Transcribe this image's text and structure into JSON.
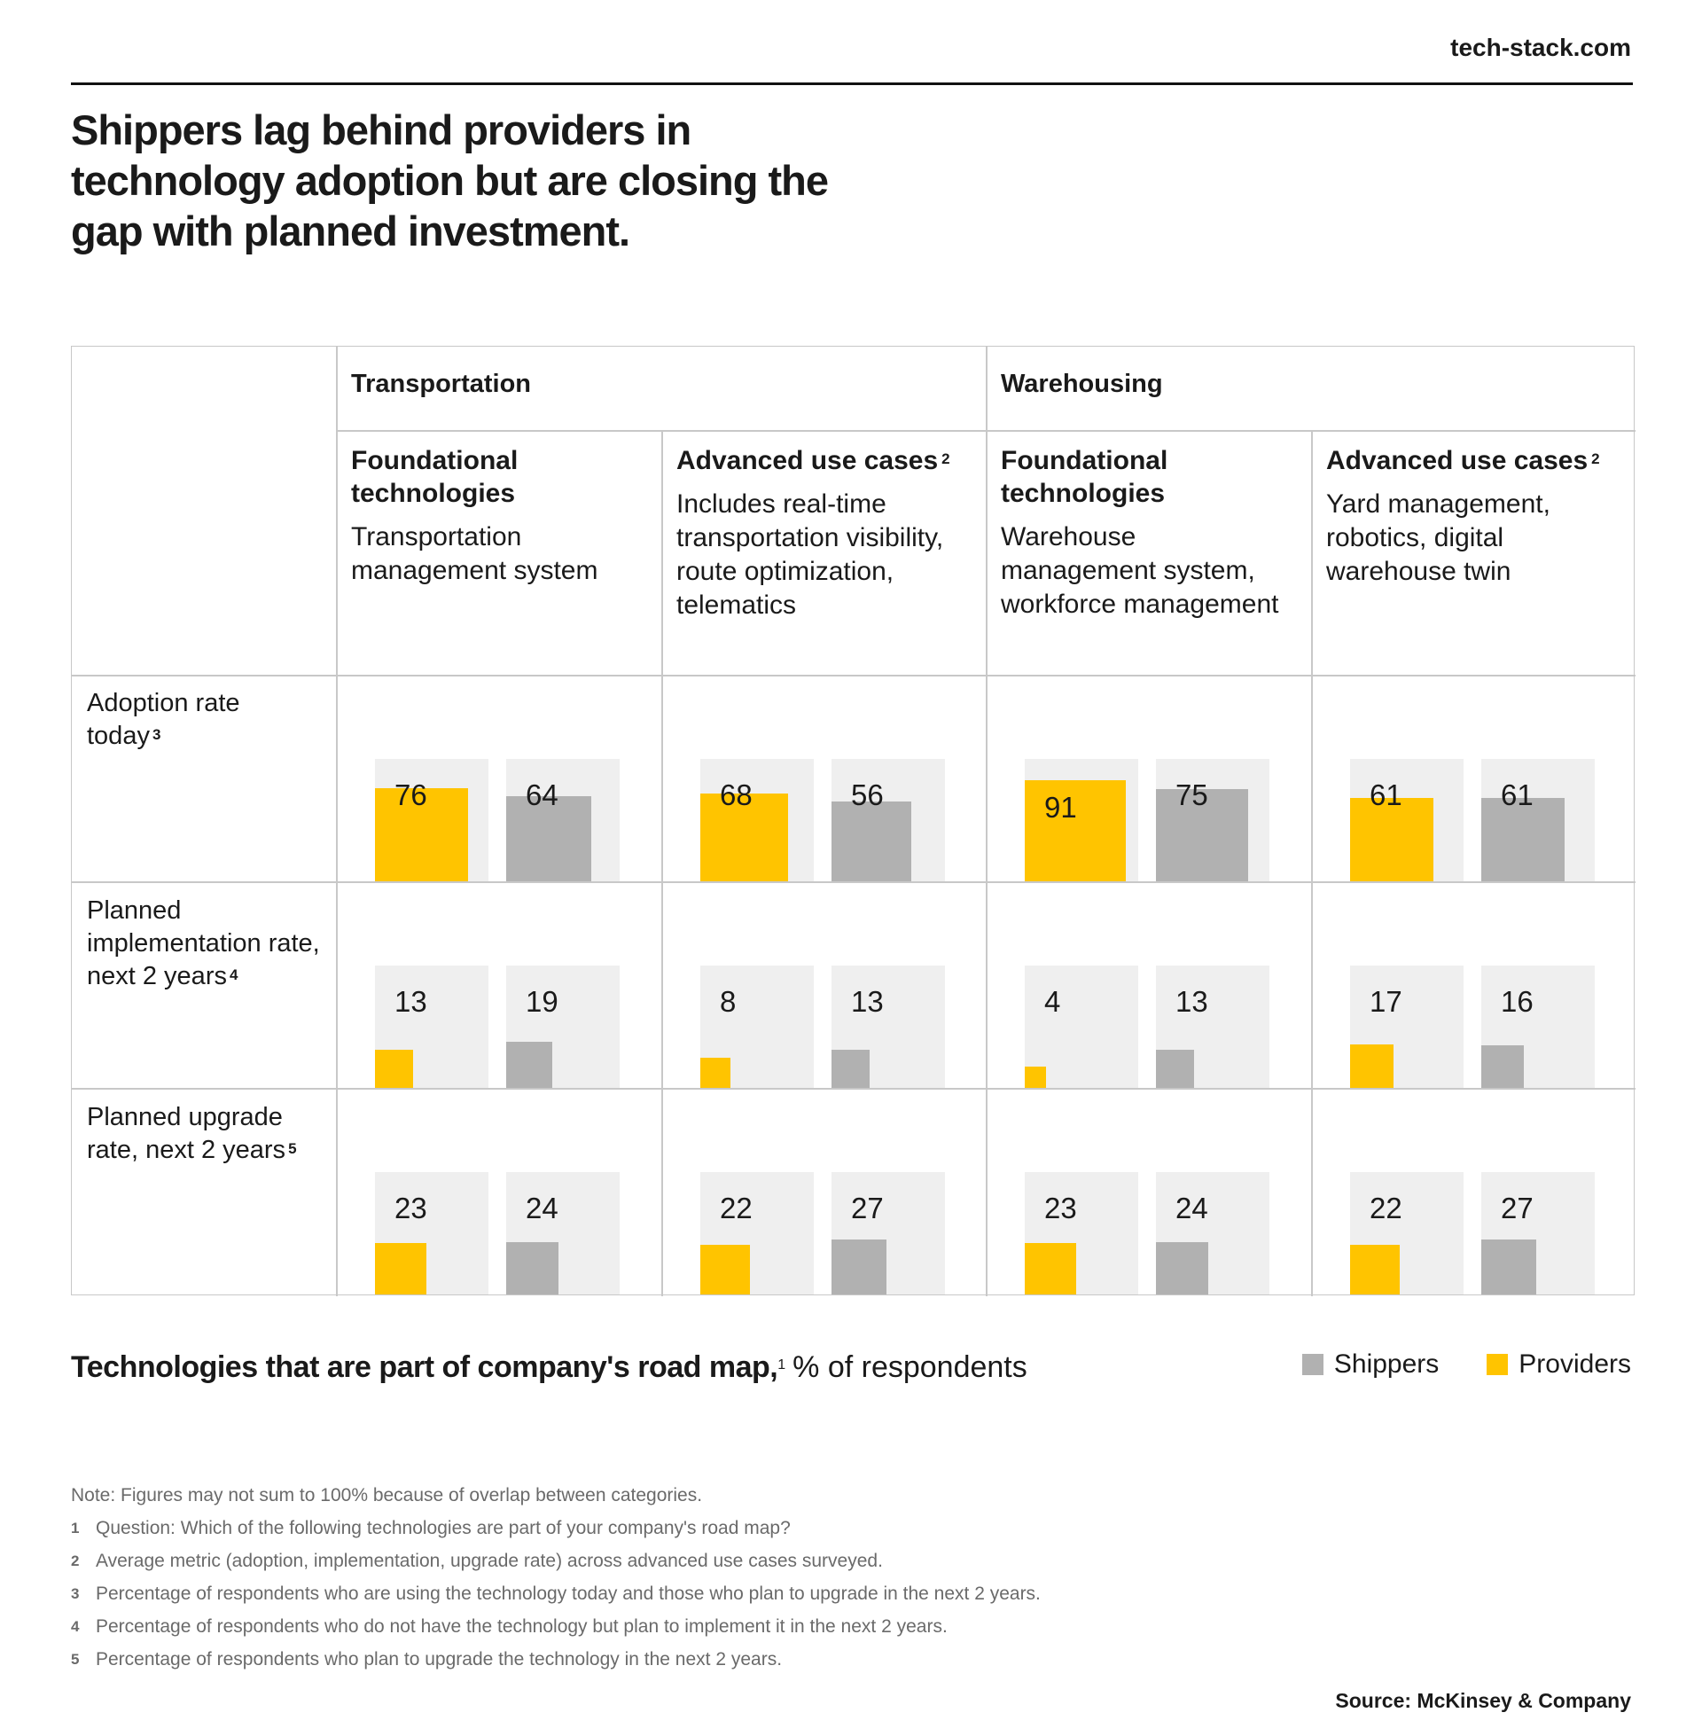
{
  "site": "tech-stack.com",
  "headline": "Shippers lag behind providers in technology adoption but are closing the gap with planned investment.",
  "sectors": [
    "Transportation",
    "Warehousing"
  ],
  "columns": [
    {
      "title": "Foundational technologies",
      "sup": "",
      "desc": "Transportation management system"
    },
    {
      "title": "Advanced use cases",
      "sup": "2",
      "desc": "Includes real-time transportation visibility, route optimization, telematics"
    },
    {
      "title": "Foundational technologies",
      "sup": "",
      "desc": "Warehouse management system, workforce management"
    },
    {
      "title": "Advanced use cases",
      "sup": "2",
      "desc": "Yard management, robotics, digital warehouse twin"
    }
  ],
  "rows": [
    {
      "label": "Adoption rate today",
      "sup": "3"
    },
    {
      "label": "Planned implementation rate, next 2 years",
      "sup": "4"
    },
    {
      "label": "Planned upgrade rate, next 2 years",
      "sup": "5"
    }
  ],
  "legend": {
    "title_bold": "Technologies that are part of company's road map,",
    "title_sup": "1",
    "title_rest": "% of respondents",
    "shippers": "Shippers",
    "providers": "Providers"
  },
  "colors": {
    "providers": "#ffc400",
    "shippers": "#b1b1b1",
    "track": "#efefef"
  },
  "chart_data": {
    "type": "bar",
    "unit": "% of respondents",
    "ylim": [
      0,
      100
    ],
    "series": [
      {
        "name": "Providers",
        "values": [
          [
            76,
            68,
            91,
            61
          ],
          [
            13,
            8,
            4,
            17
          ],
          [
            23,
            22,
            23,
            22
          ]
        ]
      },
      {
        "name": "Shippers",
        "values": [
          [
            64,
            56,
            75,
            61
          ],
          [
            19,
            13,
            13,
            16
          ],
          [
            24,
            27,
            24,
            27
          ]
        ]
      }
    ]
  },
  "notes": {
    "note": "Note: Figures may not sum to 100% because of overlap between categories.",
    "footnotes": [
      {
        "num": "1",
        "text": "Question: Which of the following technologies are part of your company's road map?"
      },
      {
        "num": "2",
        "text": "Average metric (adoption, implementation, upgrade rate) across advanced use cases surveyed."
      },
      {
        "num": "3",
        "text": "Percentage of respondents who are using the technology today and those who plan to upgrade in the next 2 years."
      },
      {
        "num": "4",
        "text": "Percentage of respondents who do not have the technology but plan to implement it in the next 2 years."
      },
      {
        "num": "5",
        "text": "Percentage of respondents who plan to upgrade the technology in the next 2 years."
      }
    ]
  },
  "source": "Source: McKinsey & Company"
}
